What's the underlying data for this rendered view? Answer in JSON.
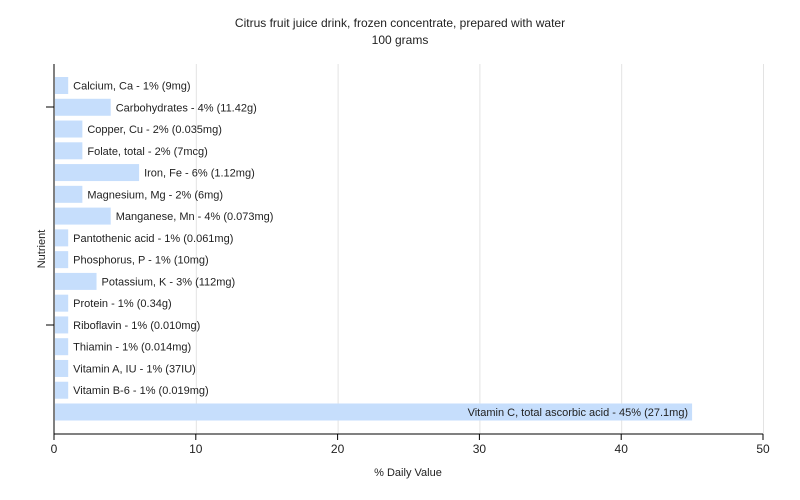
{
  "chart_data": {
    "type": "bar",
    "orientation": "horizontal",
    "title": "Citrus fruit juice drink, frozen concentrate, prepared with water",
    "subtitle": "100 grams",
    "xlabel": "% Daily Value",
    "ylabel": "Nutrient",
    "xlim": [
      0,
      50
    ],
    "xticks": [
      0,
      10,
      20,
      30,
      40,
      50
    ],
    "grid": true,
    "bar_color": "#c6defc",
    "categories": [
      "Calcium, Ca",
      "Carbohydrates",
      "Copper, Cu",
      "Folate, total",
      "Iron, Fe",
      "Magnesium, Mg",
      "Manganese, Mn",
      "Pantothenic acid",
      "Phosphorus, P",
      "Potassium, K",
      "Protein",
      "Riboflavin",
      "Thiamin",
      "Vitamin A, IU",
      "Vitamin B-6",
      "Vitamin C, total ascorbic acid"
    ],
    "values": [
      1,
      4,
      2,
      2,
      6,
      2,
      4,
      1,
      1,
      3,
      1,
      1,
      1,
      1,
      1,
      45
    ],
    "labels": [
      "Calcium, Ca - 1% (9mg)",
      "Carbohydrates - 4% (11.42g)",
      "Copper, Cu - 2% (0.035mg)",
      "Folate, total - 2% (7mcg)",
      "Iron, Fe - 6% (1.12mg)",
      "Magnesium, Mg - 2% (6mg)",
      "Manganese, Mn - 4% (0.073mg)",
      "Pantothenic acid - 1% (0.061mg)",
      "Phosphorus, P - 1% (10mg)",
      "Potassium, K - 3% (112mg)",
      "Protein - 1% (0.34g)",
      "Riboflavin - 1% (0.010mg)",
      "Thiamin - 1% (0.014mg)",
      "Vitamin A, IU - 1% (37IU)",
      "Vitamin B-6 - 1% (0.019mg)",
      "Vitamin C, total ascorbic acid - 45% (27.1mg)"
    ]
  }
}
